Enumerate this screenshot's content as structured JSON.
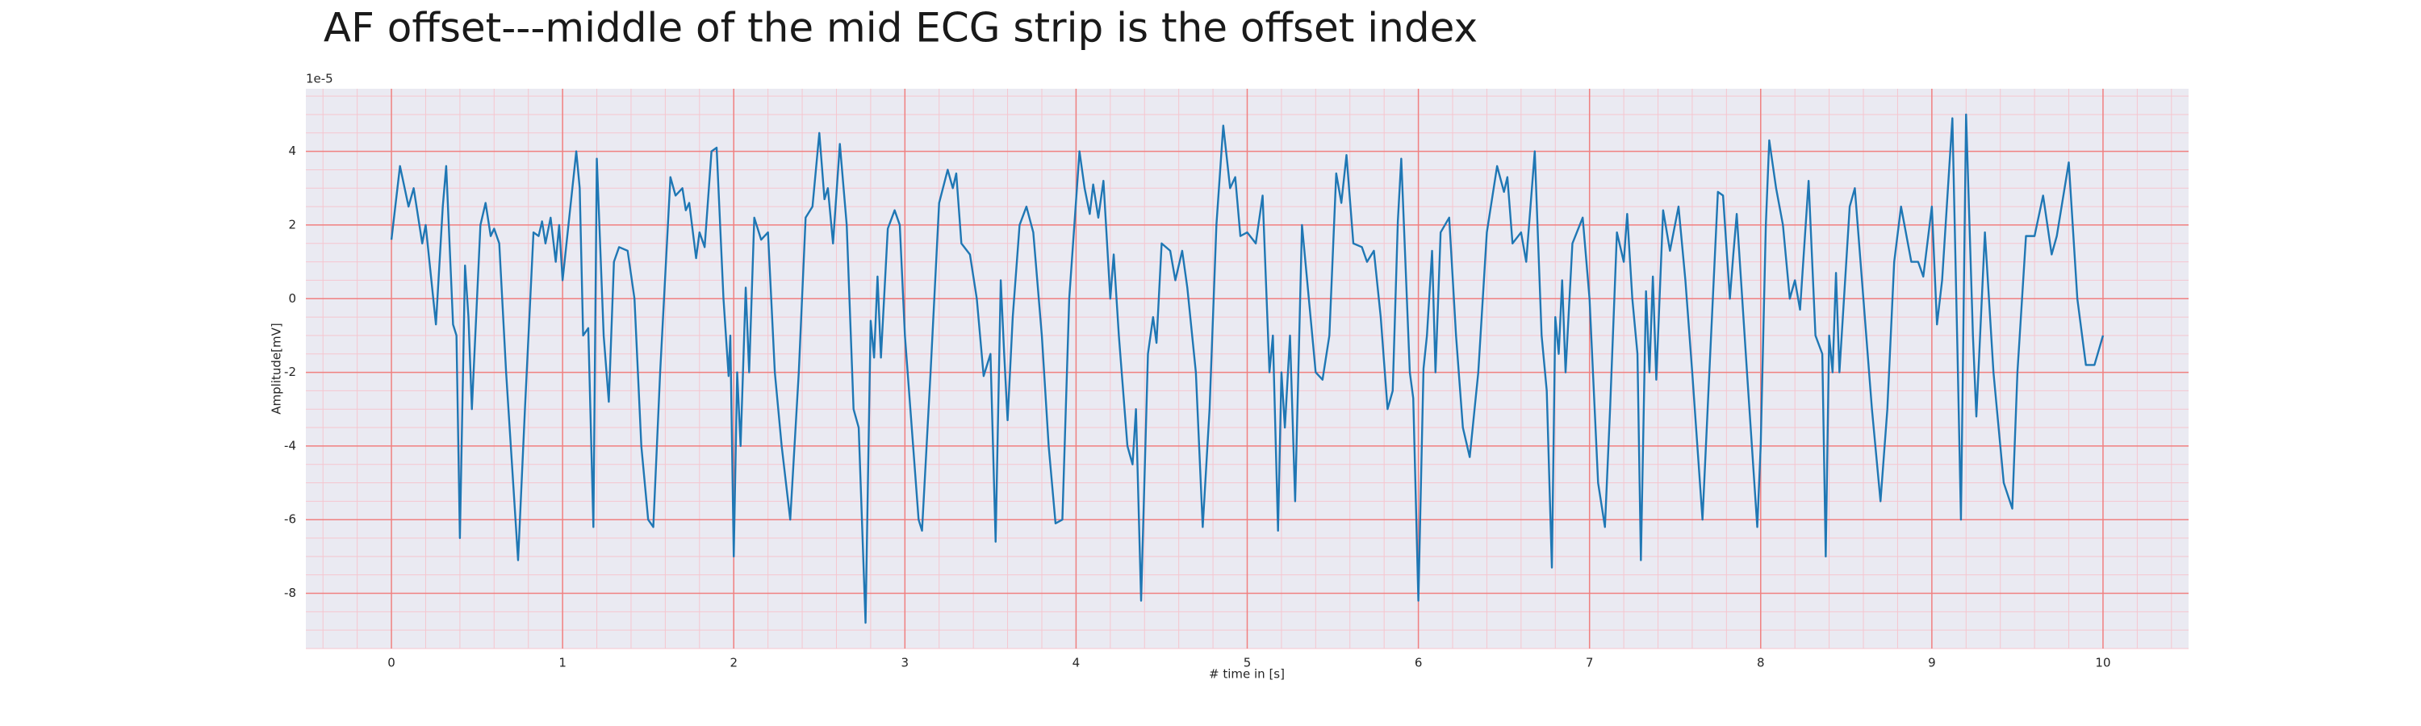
{
  "chart_data": {
    "type": "line",
    "title": "AF offset---middle of the mid ECG strip is the offset index",
    "xlabel": "# time in [s]",
    "ylabel": "Amplitude[mV]",
    "y_offset_label": "1e-5",
    "xlim": [
      -0.5,
      10.5
    ],
    "ylim": [
      -9.5,
      5.7
    ],
    "xticks": [
      0,
      1,
      2,
      3,
      4,
      5,
      6,
      7,
      8,
      9,
      10
    ],
    "yticks": [
      -8,
      -6,
      -4,
      -2,
      0,
      2,
      4
    ],
    "grid": true,
    "minor_grid": true,
    "grid_color": "#f08080",
    "minor_grid_color": "#f5c6cf",
    "background": "#eaeaf2",
    "series": [
      {
        "color": "#1f77b4",
        "x": [
          0,
          0.05,
          0.1,
          0.13,
          0.18,
          0.2,
          0.26,
          0.3,
          0.32,
          0.36,
          0.38,
          0.4,
          0.43,
          0.45,
          0.47,
          0.52,
          0.55,
          0.58,
          0.6,
          0.63,
          0.67,
          0.74,
          0.78,
          0.83,
          0.86,
          0.88,
          0.9,
          0.93,
          0.96,
          0.98,
          1.0,
          1.08,
          1.1,
          1.12,
          1.15,
          1.18,
          1.2,
          1.24,
          1.27,
          1.3,
          1.33,
          1.38,
          1.42,
          1.46,
          1.5,
          1.53,
          1.57,
          1.63,
          1.66,
          1.7,
          1.72,
          1.74,
          1.78,
          1.8,
          1.83,
          1.87,
          1.9,
          1.94,
          1.97,
          1.98,
          2.0,
          2.02,
          2.04,
          2.07,
          2.09,
          2.12,
          2.16,
          2.2,
          2.24,
          2.28,
          2.33,
          2.38,
          2.42,
          2.46,
          2.5,
          2.53,
          2.55,
          2.58,
          2.62,
          2.66,
          2.7,
          2.73,
          2.77,
          2.8,
          2.82,
          2.84,
          2.86,
          2.9,
          2.94,
          2.97,
          3.0,
          3.08,
          3.1,
          3.15,
          3.2,
          3.25,
          3.28,
          3.3,
          3.33,
          3.38,
          3.42,
          3.46,
          3.5,
          3.53,
          3.56,
          3.58,
          3.6,
          3.63,
          3.67,
          3.71,
          3.75,
          3.8,
          3.84,
          3.88,
          3.92,
          3.96,
          4.02,
          4.05,
          4.08,
          4.1,
          4.13,
          4.16,
          4.2,
          4.22,
          4.25,
          4.3,
          4.33,
          4.35,
          4.38,
          4.42,
          4.45,
          4.47,
          4.5,
          4.55,
          4.58,
          4.62,
          4.65,
          4.7,
          4.74,
          4.78,
          4.82,
          4.86,
          4.9,
          4.93,
          4.96,
          5.0,
          5.05,
          5.09,
          5.13,
          5.15,
          5.18,
          5.2,
          5.22,
          5.25,
          5.28,
          5.32,
          5.35,
          5.4,
          5.44,
          5.48,
          5.52,
          5.55,
          5.58,
          5.62,
          5.67,
          5.7,
          5.74,
          5.78,
          5.82,
          5.85,
          5.88,
          5.9,
          5.95,
          5.97,
          6.0,
          6.03,
          6.05,
          6.08,
          6.1,
          6.13,
          6.18,
          6.22,
          6.26,
          6.3,
          6.35,
          6.4,
          6.46,
          6.5,
          6.52,
          6.55,
          6.6,
          6.63,
          6.68,
          6.72,
          6.75,
          6.78,
          6.8,
          6.82,
          6.84,
          6.86,
          6.9,
          6.96,
          7.0,
          7.05,
          7.09,
          7.12,
          7.16,
          7.2,
          7.22,
          7.25,
          7.28,
          7.3,
          7.33,
          7.35,
          7.37,
          7.39,
          7.43,
          7.47,
          7.52,
          7.56,
          7.6,
          7.66,
          7.7,
          7.75,
          7.78,
          7.82,
          7.84,
          7.86,
          7.92,
          7.98,
          8.0,
          8.03,
          8.05,
          8.09,
          8.13,
          8.17,
          8.2,
          8.23,
          8.28,
          8.32,
          8.36,
          8.38,
          8.4,
          8.42,
          8.44,
          8.46,
          8.52,
          8.55,
          8.6,
          8.65,
          8.7,
          8.74,
          8.78,
          8.82,
          8.88,
          8.92,
          8.95,
          9.0,
          9.03,
          9.06,
          9.12,
          9.15,
          9.17,
          9.2,
          9.24,
          9.26,
          9.31,
          9.36,
          9.42,
          9.47,
          9.5,
          9.55,
          9.6,
          9.65,
          9.7,
          9.73,
          9.8,
          9.85,
          9.9,
          9.95,
          10.0
        ],
        "values": [
          1.6,
          3.6,
          2.5,
          3.0,
          1.5,
          2.0,
          -0.7,
          2.5,
          3.6,
          -0.7,
          -1.0,
          -6.5,
          0.9,
          -0.5,
          -3.0,
          2.0,
          2.6,
          1.7,
          1.9,
          1.5,
          -2,
          -7.1,
          -3,
          1.8,
          1.7,
          2.1,
          1.5,
          2.2,
          1.0,
          2.0,
          0.5,
          4.0,
          3.0,
          -1.0,
          -0.8,
          -6.2,
          3.8,
          -1,
          -2.8,
          1.0,
          1.4,
          1.3,
          0,
          -4,
          -6.0,
          -6.2,
          -2,
          3.3,
          2.8,
          3.0,
          2.4,
          2.6,
          1.1,
          1.8,
          1.4,
          4.0,
          4.1,
          0,
          -2.1,
          -1,
          -7.0,
          -2,
          -4.0,
          0.3,
          -2,
          2.2,
          1.6,
          1.8,
          -2,
          -4,
          -6.0,
          -2,
          2.2,
          2.5,
          4.5,
          2.7,
          3.0,
          1.5,
          4.2,
          2,
          -3.0,
          -3.5,
          -8.8,
          -0.6,
          -1.6,
          0.6,
          -1.6,
          1.9,
          2.4,
          2.0,
          -1,
          -6,
          -6.3,
          -2,
          2.6,
          3.5,
          3.0,
          3.4,
          1.5,
          1.2,
          0,
          -2.1,
          -1.5,
          -6.6,
          0.5,
          -1.5,
          -3.3,
          -0.5,
          2.0,
          2.5,
          1.8,
          -1,
          -4,
          -6.1,
          -6.0,
          0,
          4.0,
          3.0,
          2.3,
          3.1,
          2.2,
          3.2,
          0,
          1.2,
          -1,
          -4,
          -4.5,
          -3,
          -8.2,
          -1.5,
          -0.5,
          -1.2,
          1.5,
          1.3,
          0.5,
          1.3,
          0.3,
          -2,
          -6.2,
          -3,
          2,
          4.7,
          3.0,
          3.3,
          1.7,
          1.8,
          1.5,
          2.8,
          -2,
          -1,
          -6.3,
          -2,
          -3.5,
          -1,
          -5.5,
          2.0,
          0.5,
          -2,
          -2.2,
          -1,
          3.4,
          2.6,
          3.9,
          1.5,
          1.4,
          1.0,
          1.3,
          -0.5,
          -3,
          -2.5,
          2.1,
          3.8,
          -2,
          -2.7,
          -8.2,
          -1.9,
          -1,
          1.3,
          -2,
          1.8,
          2.2,
          -1,
          -3.5,
          -4.3,
          -2,
          1.8,
          3.6,
          2.9,
          3.3,
          1.5,
          1.8,
          1.0,
          4.0,
          -1,
          -2.5,
          -7.3,
          -0.5,
          -1.5,
          0.5,
          -2,
          1.5,
          2.2,
          0,
          -5,
          -6.2,
          -3,
          1.8,
          1.0,
          2.3,
          0,
          -1.5,
          -7.1,
          0.2,
          -2,
          0.6,
          -2.2,
          2.4,
          1.3,
          2.5,
          0.5,
          -2,
          -6.0,
          -2,
          2.9,
          2.8,
          0,
          1.2,
          2.3,
          -2,
          -6.2,
          -4,
          2.0,
          4.3,
          3.0,
          2.0,
          0,
          0.5,
          -0.3,
          3.2,
          -1,
          -1.5,
          -7.0,
          -1,
          -2,
          0.7,
          -2,
          2.5,
          3.0,
          0,
          -3,
          -5.5,
          -3,
          1,
          2.5,
          1.0,
          1.0,
          0.6,
          2.5,
          -0.7,
          0.5,
          4.9,
          -1.5,
          -6.0,
          5.0,
          -1,
          -3.2,
          1.8,
          -2,
          -5.0,
          -5.7,
          -2,
          1.7,
          1.7,
          2.8,
          1.2,
          1.7,
          3.7,
          0,
          -1.8,
          -1.8,
          -1.0
        ]
      }
    ]
  }
}
